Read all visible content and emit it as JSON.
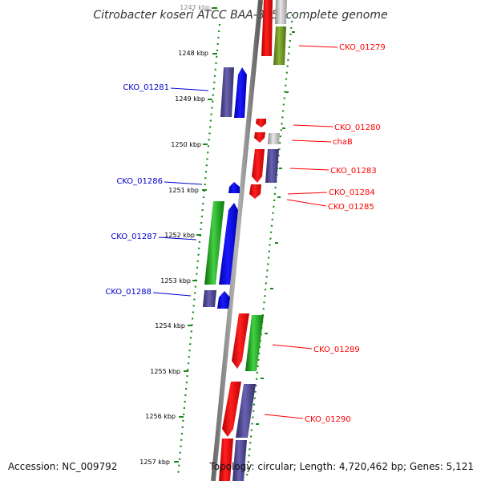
{
  "title": "Citrobacter koseri ATCC BAA-895, complete genome",
  "accession": "Accession: NC_009792",
  "topology": "Topology: circular; Length: 4,720,462 bp; Genes: 5,121",
  "colors": {
    "plus_strand_label": "#ff0000",
    "minus_strand_label": "#0000cc",
    "tick": "#1a8a1a",
    "backbone": "#808080"
  },
  "ticks": [
    {
      "label": "1247 kbp",
      "kbp": 1247
    },
    {
      "label": "1248 kbp",
      "kbp": 1248
    },
    {
      "label": "1249 kbp",
      "kbp": 1249
    },
    {
      "label": "1250 kbp",
      "kbp": 1250
    },
    {
      "label": "1251 kbp",
      "kbp": 1251
    },
    {
      "label": "1252 kbp",
      "kbp": 1252
    },
    {
      "label": "1253 kbp",
      "kbp": 1253
    },
    {
      "label": "1254 kbp",
      "kbp": 1254
    },
    {
      "label": "1255 kbp",
      "kbp": 1255
    },
    {
      "label": "1256 kbp",
      "kbp": 1256
    },
    {
      "label": "1257 kbp",
      "kbp": 1257
    }
  ],
  "gene_labels_right": [
    "CKO_01279",
    "CKO_01280",
    "chaB",
    "CKO_01283",
    "CKO_01284",
    "CKO_01285",
    "CKO_01289",
    "CKO_01290"
  ],
  "gene_labels_left": [
    "CKO_01281",
    "CKO_01286",
    "CKO_01287",
    "CKO_01288"
  ]
}
